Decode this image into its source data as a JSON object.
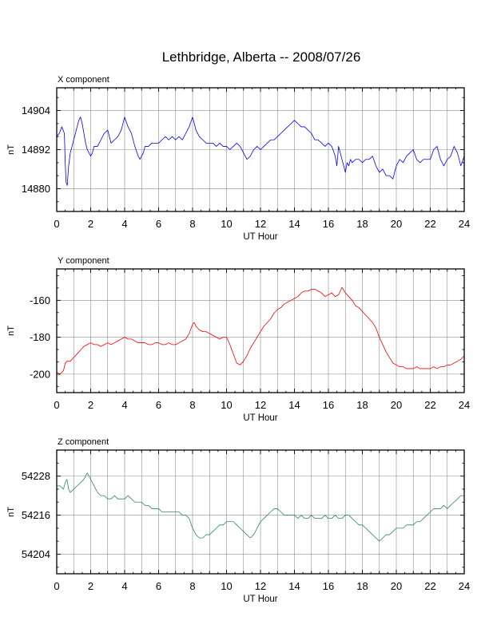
{
  "title": "Lethbridge, Alberta -- 2008/07/26",
  "chart_data": [
    {
      "type": "line",
      "panel_label": "X component",
      "xlabel": "UT Hour",
      "ylabel": "nT",
      "xlim": [
        0,
        24
      ],
      "ylim": [
        14873,
        14911
      ],
      "x_ticks": [
        0,
        2,
        4,
        6,
        8,
        10,
        12,
        14,
        16,
        18,
        20,
        22,
        24
      ],
      "y_ticks": [
        14880,
        14892,
        14904
      ],
      "grid": true,
      "color": "#0000ff",
      "series": [
        {
          "x": [
            0,
            0.15,
            0.3,
            0.45,
            0.5,
            0.55,
            0.62,
            0.7,
            0.8,
            0.9,
            1.0,
            1.1,
            1.2,
            1.3,
            1.4,
            1.5,
            1.6,
            1.7,
            1.8,
            1.9,
            2.0,
            2.1,
            2.2,
            2.4,
            2.6,
            2.8,
            3.0,
            3.2,
            3.4,
            3.6,
            3.8,
            4.0,
            4.2,
            4.4,
            4.6,
            4.8,
            4.9,
            5.0,
            5.1,
            5.2,
            5.4,
            5.6,
            5.8,
            6.0,
            6.2,
            6.4,
            6.6,
            6.8,
            7.0,
            7.2,
            7.4,
            7.6,
            7.8,
            8.0,
            8.2,
            8.4,
            8.6,
            8.8,
            9.0,
            9.2,
            9.4,
            9.6,
            9.8,
            10.0,
            10.2,
            10.4,
            10.6,
            10.8,
            11.0,
            11.2,
            11.4,
            11.6,
            11.8,
            12.0,
            12.2,
            12.4,
            12.6,
            12.8,
            13.0,
            13.2,
            13.4,
            13.6,
            13.8,
            14.0,
            14.2,
            14.4,
            14.6,
            14.8,
            15.0,
            15.2,
            15.4,
            15.6,
            15.8,
            16.0,
            16.2,
            16.4,
            16.5,
            16.6,
            16.8,
            17.0,
            17.1,
            17.2,
            17.3,
            17.4,
            17.6,
            17.8,
            18.0,
            18.2,
            18.4,
            18.6,
            18.8,
            19.0,
            19.2,
            19.4,
            19.6,
            19.8,
            20.0,
            20.2,
            20.4,
            20.6,
            20.8,
            21.0,
            21.2,
            21.4,
            21.6,
            21.8,
            22.0,
            22.2,
            22.4,
            22.6,
            22.8,
            23.0,
            23.2,
            23.4,
            23.6,
            23.8,
            24.0
          ],
          "y": [
            14896,
            14897,
            14899,
            14897,
            14888,
            14882,
            14881,
            14887,
            14891,
            14893,
            14895,
            14897,
            14899,
            14901,
            14902,
            14900,
            14897,
            14894,
            14892,
            14891,
            14890,
            14891,
            14893,
            14893,
            14895,
            14897,
            14898,
            14894,
            14895,
            14896,
            14898,
            14902,
            14899,
            14897,
            14893,
            14890,
            14889,
            14890,
            14891,
            14893,
            14893,
            14894,
            14894,
            14894,
            14895,
            14896,
            14895,
            14896,
            14895,
            14896,
            14895,
            14897,
            14899,
            14902,
            14898,
            14896,
            14895,
            14894,
            14894,
            14894,
            14893,
            14894,
            14893,
            14893,
            14892,
            14893,
            14894,
            14893,
            14891,
            14889,
            14890,
            14892,
            14893,
            14892,
            14893,
            14894,
            14895,
            14895,
            14896,
            14897,
            14898,
            14899,
            14900,
            14901,
            14900,
            14899,
            14899,
            14898,
            14897,
            14895,
            14895,
            14894,
            14893,
            14894,
            14893,
            14890,
            14887,
            14893,
            14889,
            14885,
            14888,
            14887,
            14889,
            14888,
            14889,
            14889,
            14888,
            14889,
            14889,
            14890,
            14887,
            14885,
            14886,
            14884,
            14884,
            14883,
            14887,
            14889,
            14888,
            14890,
            14891,
            14892,
            14889,
            14888,
            14889,
            14889,
            14889,
            14892,
            14893,
            14889,
            14887,
            14889,
            14890,
            14893,
            14891,
            14887,
            14890
          ]
        }
      ]
    },
    {
      "type": "line",
      "panel_label": "Y component",
      "xlabel": "UT Hour",
      "ylabel": "nT",
      "xlim": [
        0,
        24
      ],
      "ylim": [
        -210,
        -143
      ],
      "x_ticks": [
        0,
        2,
        4,
        6,
        8,
        10,
        12,
        14,
        16,
        18,
        20,
        22,
        24
      ],
      "y_ticks": [
        -200,
        -180,
        -160
      ],
      "grid": true,
      "color": "#ff0000",
      "series": [
        {
          "x": [
            0,
            0.2,
            0.4,
            0.5,
            0.6,
            0.8,
            1.0,
            1.2,
            1.4,
            1.6,
            1.8,
            2.0,
            2.2,
            2.4,
            2.6,
            2.8,
            3.0,
            3.2,
            3.4,
            3.6,
            3.8,
            4.0,
            4.2,
            4.4,
            4.6,
            4.8,
            5.0,
            5.2,
            5.4,
            5.6,
            5.8,
            6.0,
            6.2,
            6.4,
            6.6,
            6.8,
            7.0,
            7.2,
            7.4,
            7.6,
            7.8,
            8.0,
            8.1,
            8.2,
            8.4,
            8.6,
            8.8,
            9.0,
            9.2,
            9.4,
            9.6,
            9.8,
            10.0,
            10.2,
            10.4,
            10.6,
            10.8,
            11.0,
            11.2,
            11.4,
            11.6,
            11.8,
            12.0,
            12.2,
            12.4,
            12.6,
            12.8,
            13.0,
            13.2,
            13.4,
            13.6,
            13.8,
            14.0,
            14.2,
            14.4,
            14.6,
            14.8,
            15.0,
            15.2,
            15.4,
            15.6,
            15.8,
            16.0,
            16.2,
            16.4,
            16.6,
            16.8,
            17.0,
            17.2,
            17.4,
            17.6,
            17.8,
            18.0,
            18.2,
            18.4,
            18.6,
            18.8,
            19.0,
            19.2,
            19.4,
            19.6,
            19.8,
            20.0,
            20.2,
            20.4,
            20.6,
            20.8,
            21.0,
            21.2,
            21.4,
            21.6,
            21.8,
            22.0,
            22.2,
            22.4,
            22.6,
            22.8,
            23.0,
            23.2,
            23.4,
            23.6,
            23.8,
            24.0
          ],
          "y": [
            -199,
            -200,
            -198,
            -194,
            -193,
            -193,
            -191,
            -189,
            -187,
            -185,
            -184,
            -183,
            -184,
            -184,
            -185,
            -184,
            -183,
            -184,
            -183,
            -182,
            -181,
            -180,
            -181,
            -181,
            -182,
            -183,
            -183,
            -183,
            -184,
            -184,
            -183,
            -183,
            -184,
            -184,
            -183,
            -184,
            -184,
            -183,
            -182,
            -181,
            -178,
            -173,
            -172,
            -174,
            -176,
            -177,
            -177,
            -178,
            -179,
            -180,
            -181,
            -180,
            -180,
            -184,
            -189,
            -194,
            -195,
            -193,
            -190,
            -186,
            -183,
            -180,
            -177,
            -174,
            -172,
            -170,
            -167,
            -165,
            -164,
            -162,
            -161,
            -160,
            -159,
            -158,
            -156,
            -155,
            -155,
            -154,
            -154,
            -155,
            -156,
            -158,
            -157,
            -156,
            -158,
            -157,
            -153,
            -156,
            -158,
            -160,
            -163,
            -164,
            -166,
            -168,
            -170,
            -172,
            -175,
            -180,
            -184,
            -188,
            -191,
            -194,
            -195,
            -196,
            -196,
            -197,
            -197,
            -197,
            -196,
            -197,
            -197,
            -197,
            -197,
            -196,
            -197,
            -196,
            -196,
            -195,
            -195,
            -194,
            -193,
            -192,
            -190
          ]
        }
      ]
    },
    {
      "type": "line",
      "panel_label": "Z component",
      "xlabel": "UT Hour",
      "ylabel": "nT",
      "xlim": [
        0,
        24
      ],
      "ylim": [
        54198,
        54236
      ],
      "x_ticks": [
        0,
        2,
        4,
        6,
        8,
        10,
        12,
        14,
        16,
        18,
        20,
        22,
        24
      ],
      "y_ticks": [
        54204,
        54216,
        54228
      ],
      "grid": true,
      "color": "#2e8b57",
      "series": [
        {
          "x": [
            0,
            0.2,
            0.4,
            0.5,
            0.6,
            0.7,
            0.8,
            1.0,
            1.2,
            1.4,
            1.6,
            1.8,
            2.0,
            2.2,
            2.4,
            2.6,
            2.8,
            3.0,
            3.2,
            3.4,
            3.6,
            3.8,
            4.0,
            4.2,
            4.4,
            4.6,
            4.8,
            5.0,
            5.2,
            5.4,
            5.6,
            5.8,
            6.0,
            6.2,
            6.4,
            6.6,
            6.8,
            7.0,
            7.2,
            7.4,
            7.6,
            7.8,
            8.0,
            8.2,
            8.4,
            8.6,
            8.8,
            9.0,
            9.2,
            9.4,
            9.6,
            9.8,
            10.0,
            10.2,
            10.4,
            10.6,
            10.8,
            11.0,
            11.2,
            11.4,
            11.6,
            11.8,
            12.0,
            12.2,
            12.4,
            12.6,
            12.8,
            13.0,
            13.2,
            13.4,
            13.6,
            13.8,
            14.0,
            14.2,
            14.4,
            14.6,
            14.8,
            15.0,
            15.2,
            15.4,
            15.6,
            15.8,
            16.0,
            16.2,
            16.4,
            16.6,
            16.8,
            17.0,
            17.2,
            17.4,
            17.6,
            17.8,
            18.0,
            18.2,
            18.4,
            18.6,
            18.8,
            19.0,
            19.2,
            19.4,
            19.6,
            19.8,
            20.0,
            20.2,
            20.4,
            20.6,
            20.8,
            21.0,
            21.2,
            21.4,
            21.6,
            21.8,
            22.0,
            22.2,
            22.4,
            22.6,
            22.8,
            23.0,
            23.2,
            23.4,
            23.6,
            23.8,
            24.0
          ],
          "y": [
            54225,
            54225,
            54224,
            54226,
            54227,
            54224,
            54223,
            54224,
            54225,
            54226,
            54227,
            54229,
            54227,
            54225,
            54223,
            54222,
            54222,
            54221,
            54221,
            54222,
            54221,
            54221,
            54221,
            54222,
            54221,
            54220,
            54220,
            54220,
            54219,
            54219,
            54218,
            54218,
            54218,
            54217,
            54217,
            54217,
            54217,
            54217,
            54217,
            54216,
            54216,
            54215,
            54212,
            54210,
            54209,
            54209,
            54210,
            54210,
            54211,
            54212,
            54213,
            54213,
            54214,
            54214,
            54214,
            54213,
            54212,
            54211,
            54210,
            54209,
            54210,
            54212,
            54214,
            54215,
            54216,
            54217,
            54218,
            54218,
            54217,
            54216,
            54216,
            54216,
            54216,
            54215,
            54216,
            54215,
            54215,
            54216,
            54215,
            54215,
            54215,
            54216,
            54215,
            54215,
            54216,
            54215,
            54215,
            54216,
            54216,
            54215,
            54214,
            54213,
            54213,
            54212,
            54211,
            54210,
            54209,
            54208,
            54209,
            54210,
            54210,
            54211,
            54212,
            54212,
            54212,
            54213,
            54213,
            54213,
            54214,
            54214,
            54215,
            54216,
            54217,
            54218,
            54218,
            54218,
            54219,
            54218,
            54219,
            54220,
            54221,
            54222,
            54222
          ]
        }
      ]
    }
  ]
}
